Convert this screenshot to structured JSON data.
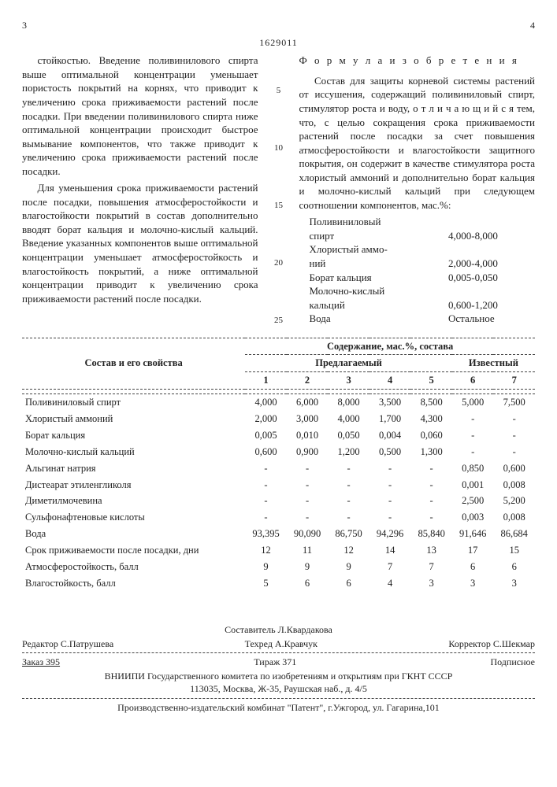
{
  "page_left": "3",
  "doc_number": "1629011",
  "page_right": "4",
  "left_col": {
    "p1": "стойкостью. Введение поливинилового спирта выше оптимальной концентрации уменьшает пористость покрытий на корнях, что приводит к увеличению срока приживаемости растений после посадки. При введении поливинилового спирта ниже оптимальной концентрации происходит быстрое вымывание компонентов, что также приводит к увеличению срока приживаемости растений после посадки.",
    "p2": "Для уменьшения срока приживаемости растений после посадки, повышения атмосферостойкости и влагостойкости покрытий в состав дополнительно вводят борат кальция и молочно-кислый кальций. Введение указанных компонентов выше оптимальной концентрации уменьшает атмосферостойкость и влагостойкость покрытий, а ниже оптимальной концентрации приводит к увеличению срока приживаемости растений после посадки."
  },
  "right_col": {
    "formula_title": "Ф о р м у л а  и з о б р е т е н и я",
    "p1": "Состав для защиты корневой системы растений от иссушения, содержащий поливиниловый спирт, стимулятор роста и воду, о т л и ч а ю щ и й с я  тем, что, с целью сокращения срока приживаемости растений после посадки за счет повышения атмосферостойкости и влагостойкости защитного покрытия, он содержит в качестве стимулятора роста хлористый аммоний и дополнительно борат кальция и молочно-кислый кальций при следующем соотношении компонентов, мас.%:",
    "ratios": [
      {
        "l1": "Поливиниловый",
        "l2": "спирт",
        "v": "4,000-8,000"
      },
      {
        "l1": "Хлористый аммо-",
        "l2": "ний",
        "v": "2,000-4,000"
      },
      {
        "l1": "Борат кальция",
        "l2": "",
        "v": "0,005-0,050"
      },
      {
        "l1": "Молочно-кислый",
        "l2": "кальций",
        "v": "0,600-1,200"
      },
      {
        "l1": "Вода",
        "l2": "",
        "v": "Остальное"
      }
    ]
  },
  "line_marks": [
    "5",
    "10",
    "15",
    "20",
    "25"
  ],
  "table": {
    "h_left": "Состав и его свойства",
    "h_right": "Содержание, мас.%, состава",
    "h_prop": "Предлагаемый",
    "h_known": "Известный",
    "cols": [
      "1",
      "2",
      "3",
      "4",
      "5",
      "6",
      "7"
    ],
    "rows": [
      {
        "n": "Поливиниловый спирт",
        "v": [
          "4,000",
          "6,000",
          "8,000",
          "3,500",
          "8,500",
          "5,000",
          "7,500"
        ]
      },
      {
        "n": "Хлористый аммоний",
        "v": [
          "2,000",
          "3,000",
          "4,000",
          "1,700",
          "4,300",
          "-",
          "-"
        ]
      },
      {
        "n": "Борат кальция",
        "v": [
          "0,005",
          "0,010",
          "0,050",
          "0,004",
          "0,060",
          "-",
          "-"
        ]
      },
      {
        "n": "Молочно-кислый кальций",
        "v": [
          "0,600",
          "0,900",
          "1,200",
          "0,500",
          "1,300",
          "-",
          "-"
        ]
      },
      {
        "n": "Альгинат натрия",
        "v": [
          "-",
          "-",
          "-",
          "-",
          "-",
          "0,850",
          "0,600"
        ]
      },
      {
        "n": "Дистеарат этиленгликоля",
        "v": [
          "-",
          "-",
          "-",
          "-",
          "-",
          "0,001",
          "0,008"
        ]
      },
      {
        "n": "Диметилмочевина",
        "v": [
          "-",
          "-",
          "-",
          "-",
          "-",
          "2,500",
          "5,200"
        ]
      },
      {
        "n": "Сульфонафтеновые кислоты",
        "v": [
          "-",
          "-",
          "-",
          "-",
          "-",
          "0,003",
          "0,008"
        ]
      },
      {
        "n": "Вода",
        "v": [
          "93,395",
          "90,090",
          "86,750",
          "94,296",
          "85,840",
          "91,646",
          "86,684"
        ]
      },
      {
        "n": "Срок приживаемости после посадки, дни",
        "v": [
          "12",
          "11",
          "12",
          "14",
          "13",
          "17",
          "15"
        ]
      },
      {
        "n": "Атмосферостойкость, балл",
        "v": [
          "9",
          "9",
          "9",
          "7",
          "7",
          "6",
          "6"
        ]
      },
      {
        "n": "Влагостойкость, балл",
        "v": [
          "5",
          "6",
          "6",
          "4",
          "3",
          "3",
          "3"
        ]
      }
    ]
  },
  "footer": {
    "compiler": "Составитель Л.Квардакова",
    "editor": "Редактор С.Патрушева",
    "tech": "Техред А.Кравчук",
    "corrector": "Корректор С.Шекмар",
    "order": "Заказ 395",
    "tirage": "Тираж 371",
    "sub": "Подписное",
    "org": "ВНИИПИ Государственного комитета по изобретениям и открытиям при ГКНТ СССР",
    "addr": "113035, Москва, Ж-35, Раушская наб., д. 4/5",
    "plant": "Производственно-издательский комбинат \"Патент\", г.Ужгород, ул. Гагарина,101"
  }
}
